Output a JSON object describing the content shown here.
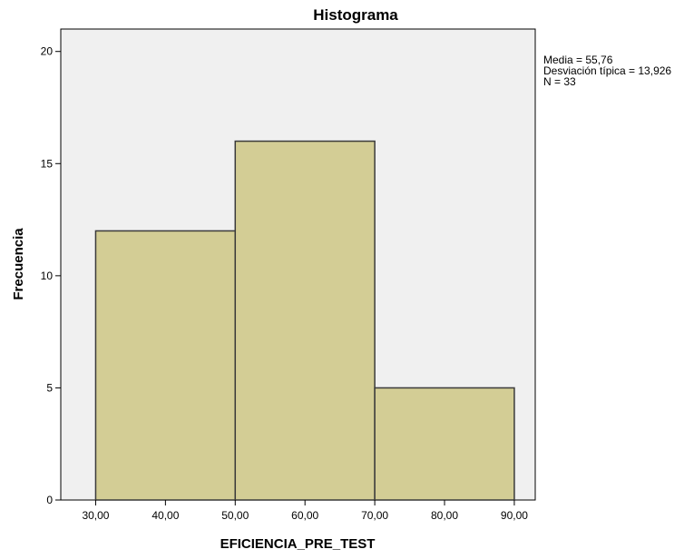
{
  "chart_data": {
    "type": "bar",
    "title": "Histograma",
    "xlabel": "EFICIENCIA_PRE_TEST",
    "ylabel": "Frecuencia",
    "bins": [
      {
        "from": 30,
        "to": 50,
        "count": 12
      },
      {
        "from": 50,
        "to": 70,
        "count": 16
      },
      {
        "from": 70,
        "to": 90,
        "count": 5
      }
    ],
    "xlim": [
      25,
      93
    ],
    "ylim": [
      0,
      21
    ],
    "x_ticks": [
      30,
      40,
      50,
      60,
      70,
      80,
      90
    ],
    "x_tick_labels": [
      "30,00",
      "40,00",
      "50,00",
      "60,00",
      "70,00",
      "80,00",
      "90,00"
    ],
    "y_ticks": [
      0,
      5,
      10,
      15,
      20
    ],
    "y_tick_labels": [
      "0",
      "5",
      "10",
      "15",
      "20"
    ],
    "grid": false,
    "stats": [
      "Media = 55,76",
      "Desviación típica = 13,926",
      "N = 33"
    ],
    "colors": {
      "bar_fill": "#d3cd95",
      "bar_stroke": "#3a3a3a",
      "plot_background": "#f0f0f0",
      "frame": "#000000"
    }
  }
}
